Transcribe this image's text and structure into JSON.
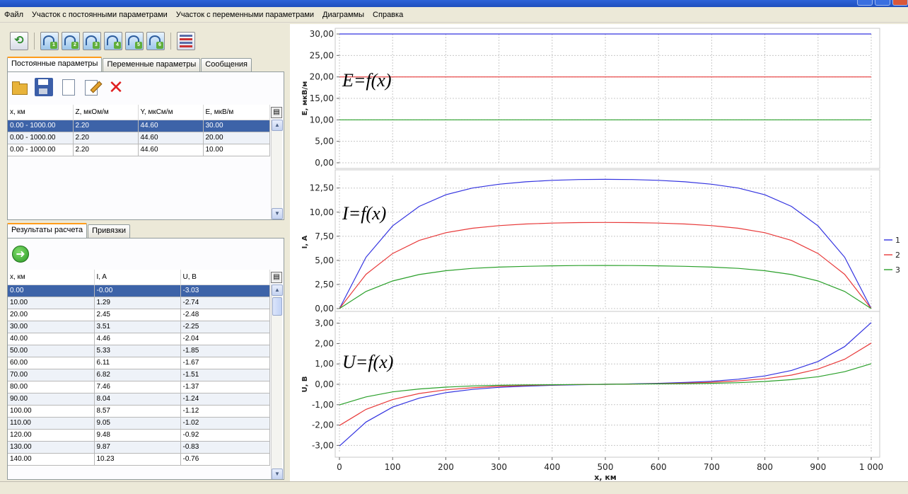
{
  "menu": [
    "Файл",
    "Участок с постоянными параметрами",
    "Участок с переменными параметрами",
    "Диаграммы",
    "Справка"
  ],
  "toolbar": {
    "icons": [
      "refresh-icon",
      "chart-1-icon",
      "chart-2-icon",
      "chart-3-icon",
      "chart-4-icon",
      "chart-5-icon",
      "chart-6-icon",
      "list-icon"
    ],
    "chart_numbers": [
      "1",
      "2",
      "3",
      "4",
      "5",
      "6"
    ]
  },
  "top_tabs": [
    "Постоянные параметры",
    "Переменные параметры",
    "Сообщения"
  ],
  "params_toolbar_icons": [
    "open-folder-icon",
    "save-icon",
    "new-page-icon",
    "edit-icon",
    "delete-icon"
  ],
  "params_table": {
    "headers": [
      "x, км",
      "Z, мкОм/м",
      "Y, мкСм/м",
      "E, мкВ/м"
    ],
    "rows": [
      [
        "0.00 - 1000.00",
        "2.20",
        "44.60",
        "30.00"
      ],
      [
        "0.00 - 1000.00",
        "2.20",
        "44.60",
        "20.00"
      ],
      [
        "0.00 - 1000.00",
        "2.20",
        "44.60",
        "10.00"
      ]
    ],
    "selected_row": 0
  },
  "bottom_tabs": [
    "Результаты расчета",
    "Привязки"
  ],
  "results_table": {
    "headers": [
      "x, км",
      "I, A",
      "U, B"
    ],
    "rows": [
      [
        "0.00",
        "-0.00",
        "-3.03"
      ],
      [
        "10.00",
        "1.29",
        "-2.74"
      ],
      [
        "20.00",
        "2.45",
        "-2.48"
      ],
      [
        "30.00",
        "3.51",
        "-2.25"
      ],
      [
        "40.00",
        "4.46",
        "-2.04"
      ],
      [
        "50.00",
        "5.33",
        "-1.85"
      ],
      [
        "60.00",
        "6.11",
        "-1.67"
      ],
      [
        "70.00",
        "6.82",
        "-1.51"
      ],
      [
        "80.00",
        "7.46",
        "-1.37"
      ],
      [
        "90.00",
        "8.04",
        "-1.24"
      ],
      [
        "100.00",
        "8.57",
        "-1.12"
      ],
      [
        "110.00",
        "9.05",
        "-1.02"
      ],
      [
        "120.00",
        "9.48",
        "-0.92"
      ],
      [
        "130.00",
        "9.87",
        "-0.83"
      ],
      [
        "140.00",
        "10.23",
        "-0.76"
      ]
    ],
    "selected_row": 0
  },
  "colors": {
    "series": [
      "#3333e0",
      "#e83a3a",
      "#2aa02a"
    ],
    "selection": "#3d63a8"
  },
  "chart_data": [
    {
      "type": "line",
      "ylabel": "E, мкВ/м",
      "annotation": "E=f(x)",
      "ylim": [
        0,
        30
      ],
      "yticks": [
        "30,00",
        "25,00",
        "20,00",
        "15,00",
        "10,00",
        "5,00",
        "0,00"
      ],
      "ytick_values": [
        30,
        25,
        20,
        15,
        10,
        5,
        0
      ],
      "x": [
        0,
        1000
      ],
      "series": [
        {
          "values": [
            30,
            30
          ]
        },
        {
          "values": [
            20,
            20
          ]
        },
        {
          "values": [
            10,
            10
          ]
        }
      ],
      "grid": true
    },
    {
      "type": "line",
      "ylabel": "I, A",
      "annotation": "I=f(x)",
      "ylim": [
        0,
        13.8
      ],
      "yticks": [
        "12,50",
        "10,00",
        "7,50",
        "5,00",
        "2,50",
        "0,00"
      ],
      "ytick_values": [
        12.5,
        10,
        7.5,
        5,
        2.5,
        0
      ],
      "x": [
        0,
        50,
        100,
        150,
        200,
        250,
        300,
        350,
        400,
        450,
        500,
        550,
        600,
        650,
        700,
        750,
        800,
        850,
        900,
        950,
        1000
      ],
      "series": [
        {
          "name": "1",
          "values": [
            0,
            5.33,
            8.57,
            10.6,
            11.8,
            12.5,
            12.9,
            13.15,
            13.3,
            13.38,
            13.4,
            13.38,
            13.3,
            13.15,
            12.9,
            12.5,
            11.8,
            10.6,
            8.57,
            5.33,
            0
          ]
        },
        {
          "name": "2",
          "values": [
            0,
            3.55,
            5.71,
            7.07,
            7.87,
            8.33,
            8.6,
            8.77,
            8.87,
            8.92,
            8.93,
            8.92,
            8.87,
            8.77,
            8.6,
            8.33,
            7.87,
            7.07,
            5.71,
            3.55,
            0
          ]
        },
        {
          "name": "3",
          "values": [
            0,
            1.78,
            2.86,
            3.53,
            3.93,
            4.17,
            4.3,
            4.38,
            4.43,
            4.46,
            4.47,
            4.46,
            4.43,
            4.38,
            4.3,
            4.17,
            3.93,
            3.53,
            2.86,
            1.78,
            0
          ]
        }
      ],
      "legend": "right",
      "grid": true
    },
    {
      "type": "line",
      "ylabel": "U, B",
      "xlabel": "x, км",
      "annotation": "U=f(x)",
      "ylim": [
        -3.3,
        3.3
      ],
      "yticks": [
        "3,00",
        "2,00",
        "1,00",
        "0,00",
        "-1,00",
        "-2,00",
        "-3,00"
      ],
      "ytick_values": [
        3,
        2,
        1,
        0,
        -1,
        -2,
        -3
      ],
      "xticks": [
        "0",
        "100",
        "200",
        "300",
        "400",
        "500",
        "600",
        "700",
        "800",
        "900",
        "1 000"
      ],
      "xtick_values": [
        0,
        100,
        200,
        300,
        400,
        500,
        600,
        700,
        800,
        900,
        1000
      ],
      "xlim": [
        0,
        1000
      ],
      "x": [
        0,
        50,
        100,
        150,
        200,
        250,
        300,
        350,
        400,
        450,
        500,
        550,
        600,
        650,
        700,
        750,
        800,
        850,
        900,
        950,
        1000
      ],
      "series": [
        {
          "name": "1",
          "values": [
            -3.03,
            -1.85,
            -1.12,
            -0.68,
            -0.41,
            -0.25,
            -0.15,
            -0.09,
            -0.05,
            -0.02,
            0,
            0.02,
            0.05,
            0.09,
            0.15,
            0.25,
            0.41,
            0.68,
            1.12,
            1.85,
            3.03
          ]
        },
        {
          "name": "2",
          "values": [
            -2.02,
            -1.23,
            -0.75,
            -0.45,
            -0.27,
            -0.17,
            -0.1,
            -0.06,
            -0.03,
            -0.01,
            0,
            0.01,
            0.03,
            0.06,
            0.1,
            0.17,
            0.27,
            0.45,
            0.75,
            1.23,
            2.02
          ]
        },
        {
          "name": "3",
          "values": [
            -1.01,
            -0.62,
            -0.37,
            -0.23,
            -0.14,
            -0.08,
            -0.05,
            -0.03,
            -0.02,
            -0.01,
            0,
            0.01,
            0.02,
            0.03,
            0.05,
            0.08,
            0.14,
            0.23,
            0.37,
            0.62,
            1.01
          ]
        }
      ],
      "grid": true
    }
  ]
}
